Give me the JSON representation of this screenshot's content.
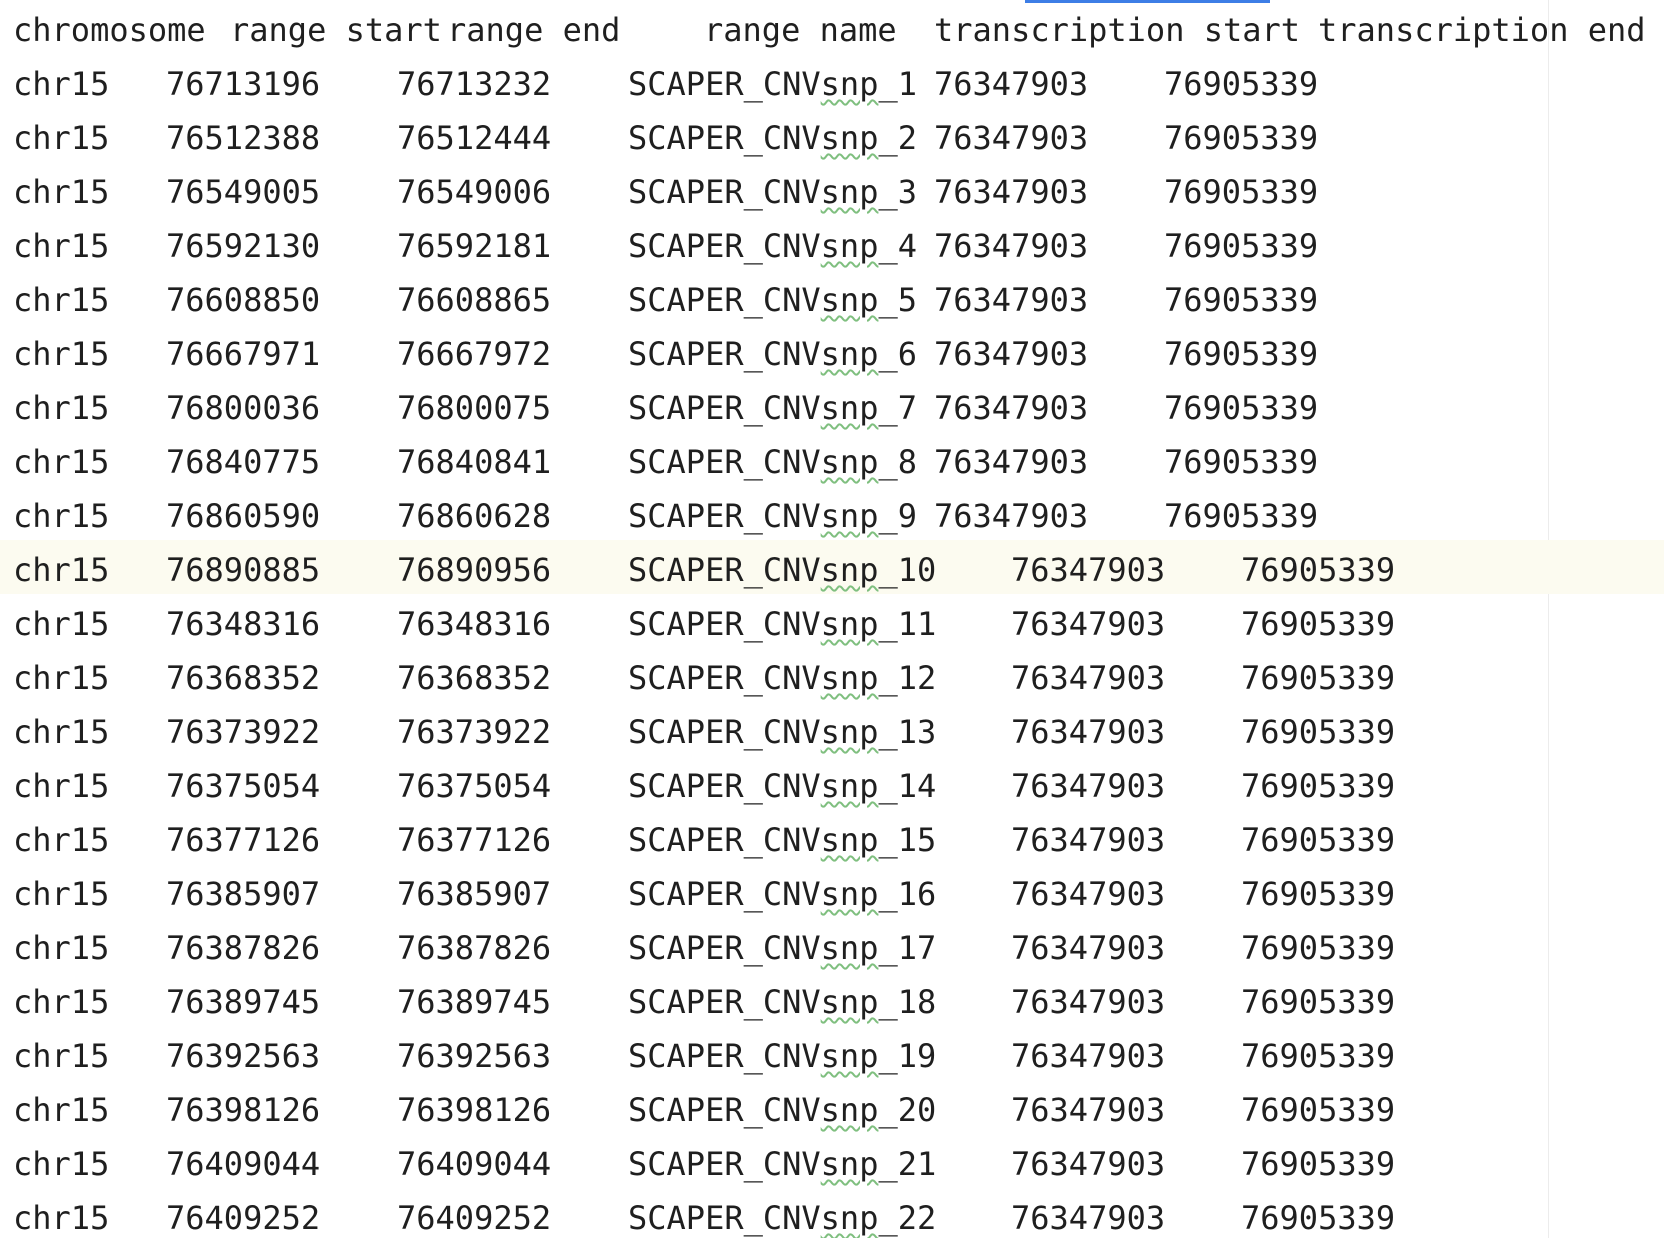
{
  "table": {
    "columns": [
      "chromosome",
      "range start",
      "range end",
      "range name",
      "transcription start",
      "transcription end"
    ],
    "rows": [
      [
        "chr15",
        "76713196",
        "76713232",
        "SCAPER_CNVsnp_1",
        "76347903",
        "76905339"
      ],
      [
        "chr15",
        "76512388",
        "76512444",
        "SCAPER_CNVsnp_2",
        "76347903",
        "76905339"
      ],
      [
        "chr15",
        "76549005",
        "76549006",
        "SCAPER_CNVsnp_3",
        "76347903",
        "76905339"
      ],
      [
        "chr15",
        "76592130",
        "76592181",
        "SCAPER_CNVsnp_4",
        "76347903",
        "76905339"
      ],
      [
        "chr15",
        "76608850",
        "76608865",
        "SCAPER_CNVsnp_5",
        "76347903",
        "76905339"
      ],
      [
        "chr15",
        "76667971",
        "76667972",
        "SCAPER_CNVsnp_6",
        "76347903",
        "76905339"
      ],
      [
        "chr15",
        "76800036",
        "76800075",
        "SCAPER_CNVsnp_7",
        "76347903",
        "76905339"
      ],
      [
        "chr15",
        "76840775",
        "76840841",
        "SCAPER_CNVsnp_8",
        "76347903",
        "76905339"
      ],
      [
        "chr15",
        "76860590",
        "76860628",
        "SCAPER_CNVsnp_9",
        "76347903",
        "76905339"
      ],
      [
        "chr15",
        "76890885",
        "76890956",
        "SCAPER_CNVsnp_10",
        "76347903",
        "76905339"
      ],
      [
        "chr15",
        "76348316",
        "76348316",
        "SCAPER_CNVsnp_11",
        "76347903",
        "76905339"
      ],
      [
        "chr15",
        "76368352",
        "76368352",
        "SCAPER_CNVsnp_12",
        "76347903",
        "76905339"
      ],
      [
        "chr15",
        "76373922",
        "76373922",
        "SCAPER_CNVsnp_13",
        "76347903",
        "76905339"
      ],
      [
        "chr15",
        "76375054",
        "76375054",
        "SCAPER_CNVsnp_14",
        "76347903",
        "76905339"
      ],
      [
        "chr15",
        "76377126",
        "76377126",
        "SCAPER_CNVsnp_15",
        "76347903",
        "76905339"
      ],
      [
        "chr15",
        "76385907",
        "76385907",
        "SCAPER_CNVsnp_16",
        "76347903",
        "76905339"
      ],
      [
        "chr15",
        "76387826",
        "76387826",
        "SCAPER_CNVsnp_17",
        "76347903",
        "76905339"
      ],
      [
        "chr15",
        "76389745",
        "76389745",
        "SCAPER_CNVsnp_18",
        "76347903",
        "76905339"
      ],
      [
        "chr15",
        "76392563",
        "76392563",
        "SCAPER_CNVsnp_19",
        "76347903",
        "76905339"
      ],
      [
        "chr15",
        "76398126",
        "76398126",
        "SCAPER_CNVsnp_20",
        "76347903",
        "76905339"
      ],
      [
        "chr15",
        "76409044",
        "76409044",
        "SCAPER_CNVsnp_21",
        "76347903",
        "76905339"
      ],
      [
        "chr15",
        "76409252",
        "76409252",
        "SCAPER_CNVsnp_22",
        "76347903",
        "76905339"
      ]
    ],
    "current_line_row": 9,
    "colors": {
      "text": "#1f1f1f",
      "current_line_bg": "#fcfbf0",
      "spell_underline": "#7fbf7f",
      "top_accent": "#3d7ee6"
    }
  }
}
